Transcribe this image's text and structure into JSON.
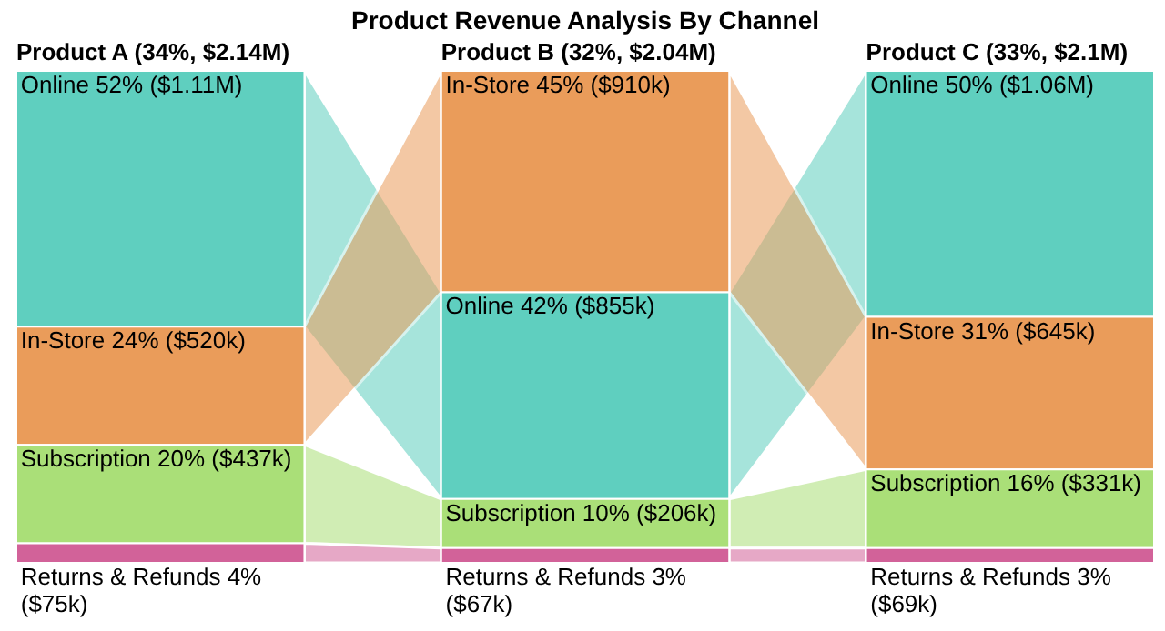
{
  "chart_data": {
    "type": "other",
    "title": "Product Revenue Analysis By Channel",
    "categories": [
      "Product A (34%, $2.14M)",
      "Product B (32%, $2.04M)",
      "Product C (33%, $2.1M)"
    ],
    "series": [
      {
        "color": "#5fcfbf",
        "values": [
          52,
          42,
          50
        ],
        "value_labels": [
          "Online 52% ($1.11M)",
          "Online 42% ($855k)",
          "Online 50% ($1.06M)"
        ]
      },
      {
        "color": "#ea9c5a",
        "values": [
          24,
          45,
          31
        ],
        "value_labels": [
          "In-Store 24% ($520k)",
          "In-Store 45% ($910k)",
          "In-Store 31% ($645k)"
        ]
      },
      {
        "color": "#aadf78",
        "values": [
          20,
          10,
          16
        ],
        "value_labels": [
          "Subscription 20% ($437k)",
          "Subscription 10% ($206k)",
          "Subscription 16% ($331k)"
        ]
      },
      {
        "color": "#d26299",
        "values": [
          4,
          3,
          3
        ],
        "value_labels": [
          "Returns & Refunds 4% ($75k)",
          "Returns & Refunds 3% ($67k)",
          "Returns & Refunds 3% ($69k)"
        ]
      }
    ]
  }
}
